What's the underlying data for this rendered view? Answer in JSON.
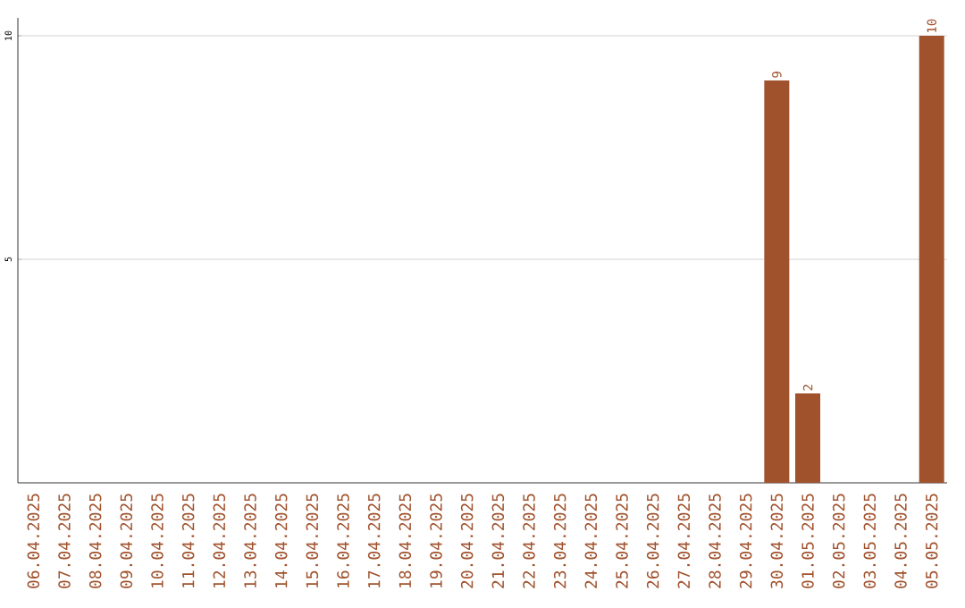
{
  "chart_data": {
    "type": "bar",
    "categories": [
      "06.04.2025",
      "07.04.2025",
      "08.04.2025",
      "09.04.2025",
      "10.04.2025",
      "11.04.2025",
      "12.04.2025",
      "13.04.2025",
      "14.04.2025",
      "15.04.2025",
      "16.04.2025",
      "17.04.2025",
      "18.04.2025",
      "19.04.2025",
      "20.04.2025",
      "21.04.2025",
      "22.04.2025",
      "23.04.2025",
      "24.04.2025",
      "25.04.2025",
      "26.04.2025",
      "27.04.2025",
      "28.04.2025",
      "29.04.2025",
      "30.04.2025",
      "01.05.2025",
      "02.05.2025",
      "03.05.2025",
      "04.05.2025",
      "05.05.2025"
    ],
    "values": [
      0,
      0,
      0,
      0,
      0,
      0,
      0,
      0,
      0,
      0,
      0,
      0,
      0,
      0,
      0,
      0,
      0,
      0,
      0,
      0,
      0,
      0,
      0,
      0,
      9,
      2,
      0,
      0,
      0,
      10
    ],
    "value_labels": [
      null,
      null,
      null,
      null,
      null,
      null,
      null,
      null,
      null,
      null,
      null,
      null,
      null,
      null,
      null,
      null,
      null,
      null,
      null,
      null,
      null,
      null,
      null,
      null,
      "9",
      "2",
      null,
      null,
      null,
      "10"
    ],
    "color": "#a0522d",
    "ylim": [
      0,
      10.4
    ],
    "yticks": [
      5,
      10
    ],
    "grid": "y"
  }
}
